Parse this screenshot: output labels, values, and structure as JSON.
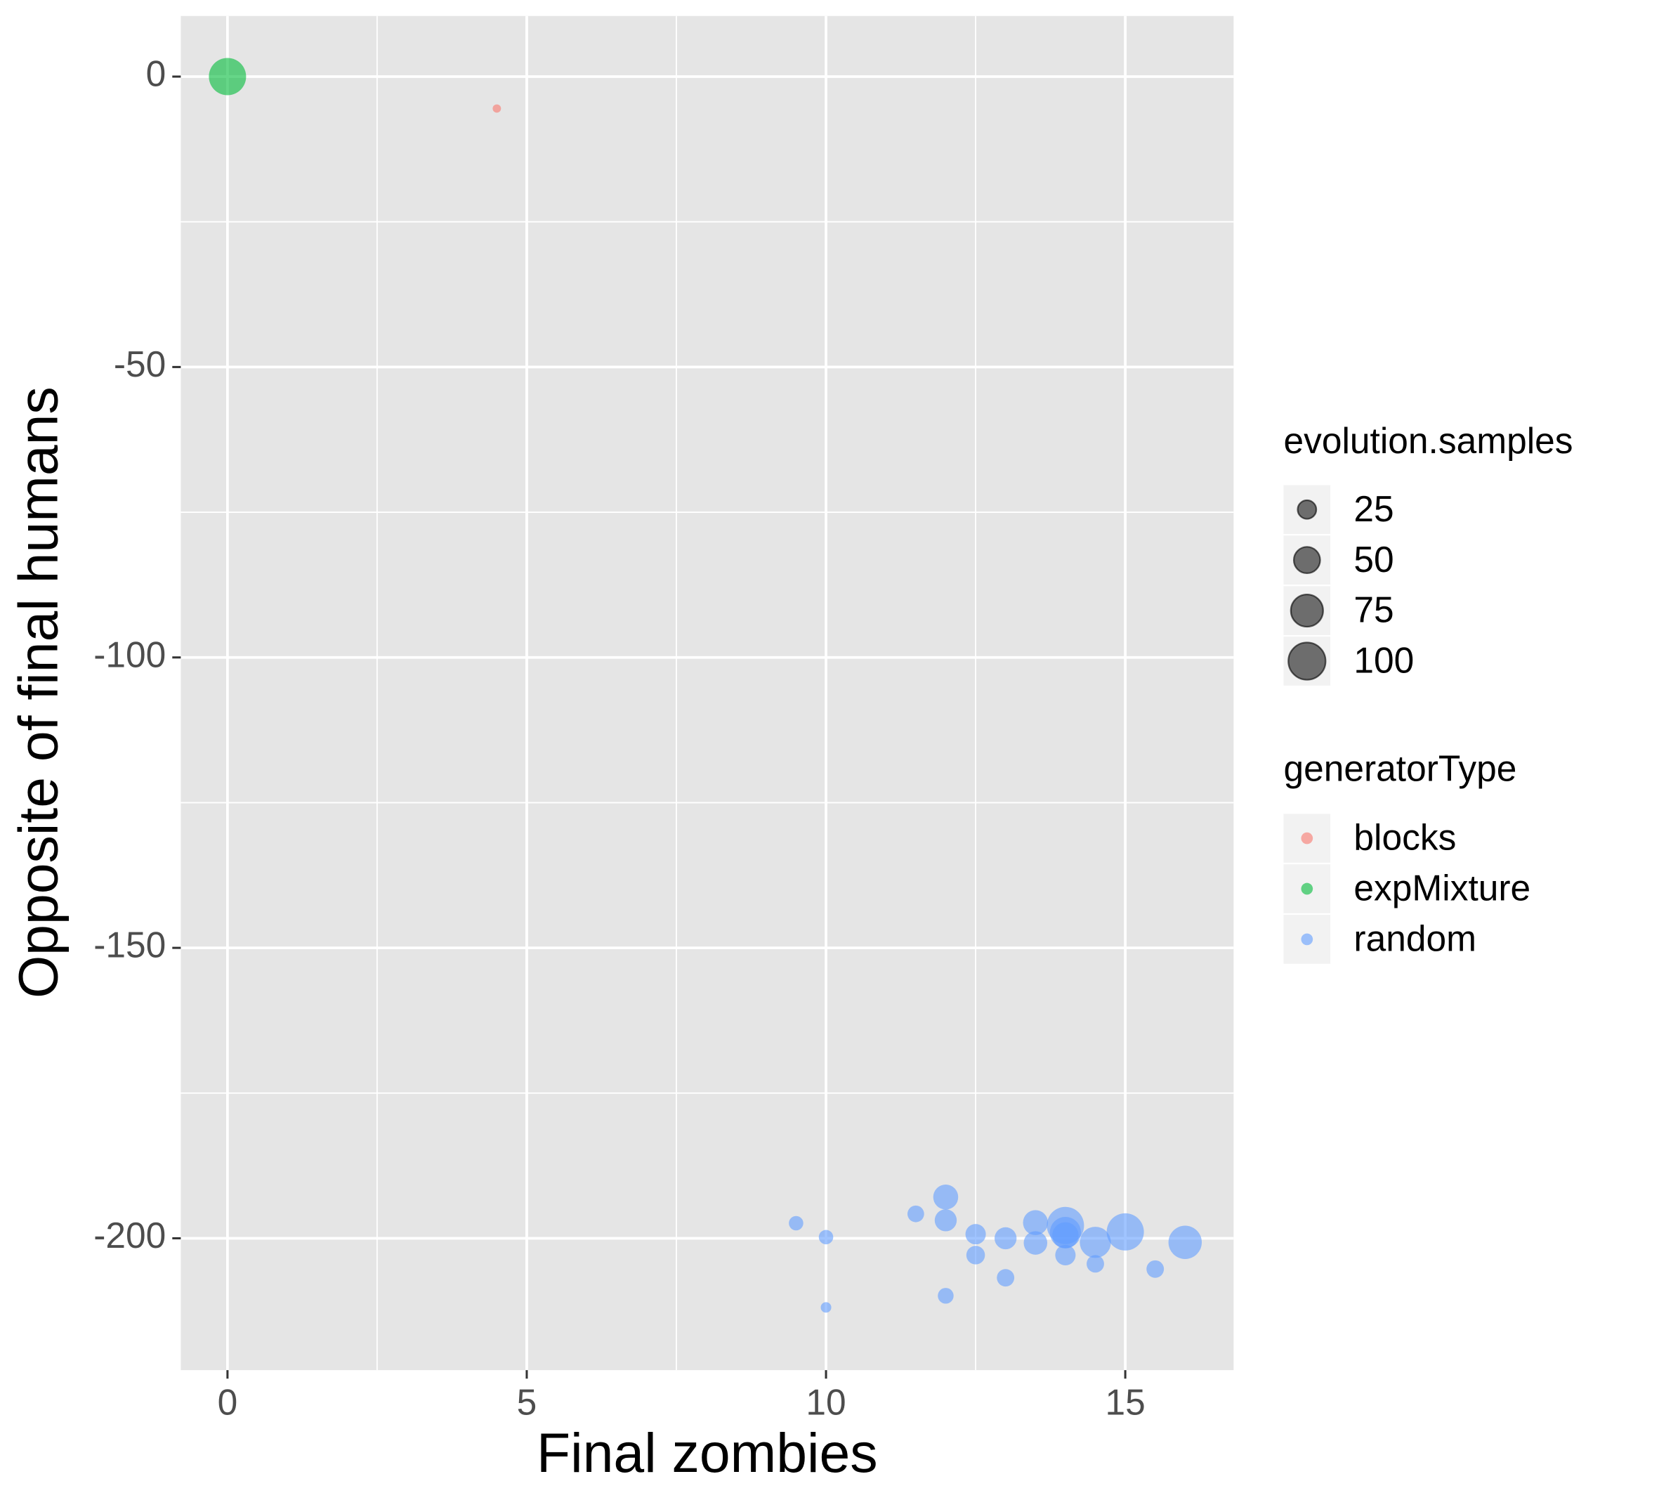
{
  "chart_data": {
    "type": "scatter",
    "x_label": "Final zombies",
    "y_label": "Opposite of final humans",
    "xlim": [
      -0.78,
      16.81
    ],
    "ylim": [
      -222.7,
      10.44
    ],
    "xticks": [
      0,
      5,
      10,
      15
    ],
    "yticks": [
      0,
      -50,
      -100,
      -150,
      -200
    ],
    "xminor": [
      2.5,
      7.5,
      12.5
    ],
    "yminor": [
      -25,
      -75,
      -125,
      -175
    ],
    "grid": true,
    "alpha": 0.6,
    "legend_position": "right",
    "size_legend": {
      "title": "evolution.samples",
      "values": [
        25,
        50,
        75,
        100
      ]
    },
    "color_legend_title": "generatorType",
    "series": [
      {
        "name": "blocks",
        "color": "#F8766D",
        "x": [
          4.5
        ],
        "y": [
          -5.5
        ],
        "sizes": [
          5
        ]
      },
      {
        "name": "expMixture",
        "color": "#00BA38",
        "x": [
          0
        ],
        "y": [
          0
        ],
        "sizes": [
          100
        ]
      },
      {
        "name": "random",
        "color": "#619CFF",
        "x": [
          9.5,
          10,
          10,
          11.5,
          12,
          12,
          12,
          12.5,
          12.5,
          13,
          13,
          13.5,
          13.5,
          14,
          14,
          14,
          14,
          14.5,
          14.5,
          15,
          15.5,
          16
        ],
        "y": [
          -197.4,
          -199.8,
          -211.9,
          -195.8,
          -192.9,
          -196.9,
          -209.9,
          -199.3,
          -202.9,
          -200,
          -206.8,
          -197.3,
          -200.8,
          -197.8,
          -199,
          -199.5,
          -202.9,
          -200.7,
          -204.4,
          -198.9,
          -205.3,
          -200.7
        ],
        "sizes": [
          15,
          15,
          8,
          20,
          45,
          35,
          18,
          30,
          25,
          35,
          22,
          45,
          40,
          100,
          70,
          50,
          30,
          70,
          22,
          100,
          22,
          80
        ]
      }
    ]
  }
}
